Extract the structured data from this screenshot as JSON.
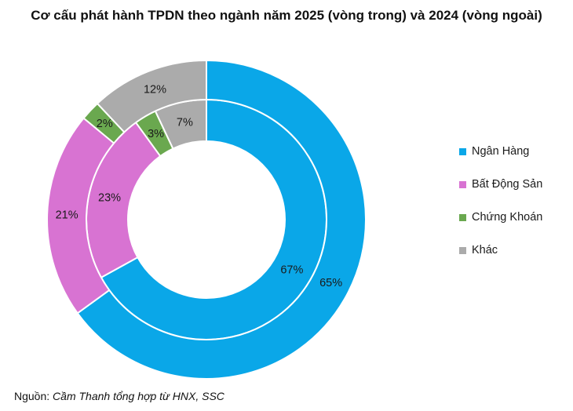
{
  "chart_data": {
    "type": "pie",
    "variant": "nested-donut",
    "title": "Cơ cấu phát hành TPDN theo ngành năm 2025 (vòng trong) và 2024 (vòng ngoài)",
    "categories": [
      "Ngân Hàng",
      "Bất Động Sản",
      "Chứng Khoán",
      "Khác"
    ],
    "colors": [
      "#0AA7E8",
      "#D873D2",
      "#6AA84F",
      "#ABABAB"
    ],
    "series": [
      {
        "name": "2025 (vòng trong)",
        "ring": "inner",
        "values": [
          67,
          23,
          3,
          7
        ]
      },
      {
        "name": "2024 (vòng ngoài)",
        "ring": "outer",
        "values": [
          65,
          21,
          2,
          12
        ]
      }
    ],
    "label_format": "percent",
    "legend_position": "right",
    "start_angle_deg": 0,
    "direction": "clockwise"
  },
  "source": {
    "prefix": "Nguồn: ",
    "text": "Cầm Thanh tổng hợp từ HNX, SSC"
  }
}
